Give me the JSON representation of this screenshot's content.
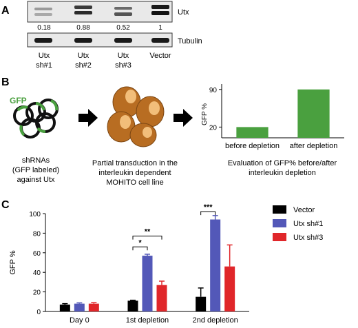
{
  "panel_a": {
    "letter": "A",
    "band_labels": {
      "top": "Utx",
      "bottom": "Tubulin"
    },
    "quant": [
      "0.18",
      "0.88",
      "0.52",
      "1"
    ],
    "lanes": [
      {
        "line1": "Utx",
        "line2": "sh#1"
      },
      {
        "line1": "Utx",
        "line2": "sh#2"
      },
      {
        "line1": "Utx",
        "line2": "sh#3"
      },
      {
        "line1": "Vector",
        "line2": ""
      }
    ]
  },
  "panel_b": {
    "letter": "B",
    "gfp_label": "GFP",
    "step1": [
      "shRNAs",
      "(GFP labeled)",
      "against Utx"
    ],
    "step2": [
      "Partial transduction in the",
      "interleukin dependent",
      "MOHITO cell line"
    ],
    "step3": [
      "Evaluation of GFP% before/after",
      "interleukin depletion"
    ],
    "colors": {
      "gfp_green": "#4aa03f",
      "cell_brown": "#b86d22",
      "cell_nucleus": "#f2be7a"
    }
  },
  "panel_c": {
    "letter": "C",
    "legend": [
      {
        "label": "Vector",
        "color": "#000000"
      },
      {
        "label": "Utx sh#1",
        "color": "#5358b8"
      },
      {
        "label": "Utx sh#3",
        "color": "#e0262a"
      }
    ]
  },
  "chart_data": [
    {
      "type": "bar",
      "categories": [
        "before depletion",
        "after depletion"
      ],
      "values": [
        20,
        90
      ],
      "ylabel": "GFP %",
      "yticks": [
        20,
        90
      ],
      "ylim": [
        0,
        100
      ],
      "color": "#4aa03f"
    },
    {
      "type": "bar",
      "categories": [
        "Day 0",
        "1st depletion",
        "2nd depletion"
      ],
      "series": [
        {
          "name": "Vector",
          "values": [
            7,
            11,
            15
          ],
          "errors": [
            1,
            0.5,
            9
          ],
          "color": "#000000"
        },
        {
          "name": "Utx sh#1",
          "values": [
            8,
            57,
            94
          ],
          "errors": [
            0.8,
            1.5,
            4
          ],
          "color": "#5358b8"
        },
        {
          "name": "Utx sh#3",
          "values": [
            8,
            27,
            46
          ],
          "errors": [
            1,
            4,
            22
          ],
          "color": "#e0262a"
        }
      ],
      "ylabel": "GFP %",
      "ylim": [
        0,
        100
      ],
      "yticks": [
        0,
        20,
        40,
        60,
        80,
        100
      ],
      "annotations": [
        {
          "group": "1st depletion",
          "from": "Vector",
          "to": "Utx sh#1",
          "text": "*"
        },
        {
          "group": "1st depletion",
          "from": "Vector",
          "to": "Utx sh#3",
          "text": "**"
        },
        {
          "group": "2nd depletion",
          "from": "Vector",
          "to": "Utx sh#1",
          "text": "***"
        }
      ]
    }
  ]
}
